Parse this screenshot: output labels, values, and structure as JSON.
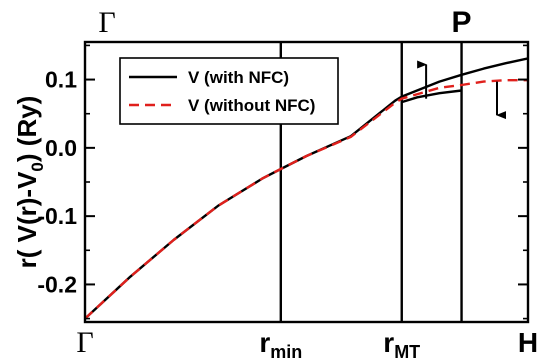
{
  "chart_data": {
    "type": "line",
    "title": "",
    "ylabel_parts": [
      "r( V(r)-V",
      "0",
      ") (Ry)"
    ],
    "xlabel": "",
    "xlim": [
      0,
      1
    ],
    "ylim": [
      -0.255,
      0.155
    ],
    "grid": false,
    "legend_position": "top-left",
    "y_ticks": [
      -0.2,
      -0.1,
      0.0,
      0.1
    ],
    "y_tick_labels": [
      "-0.2",
      "-0.1",
      "0.0",
      "0.1"
    ],
    "x_tick_marks": [
      {
        "x": 0.0,
        "main": "Γ",
        "sub": "",
        "font": "serif"
      },
      {
        "x": 0.442,
        "main": "r",
        "sub": "min",
        "font": "sans"
      },
      {
        "x": 0.715,
        "main": "r",
        "sub": "MT",
        "font": "sans"
      },
      {
        "x": 1.0,
        "main": "H",
        "sub": "",
        "font": "sans"
      }
    ],
    "top_labels": [
      {
        "x": 0.0,
        "text": "Γ",
        "font": "serif"
      },
      {
        "x": 0.85,
        "text": "P",
        "font": "sans"
      }
    ],
    "vertical_lines": [
      0.442,
      0.715,
      0.85
    ],
    "series": [
      {
        "name": "V (with NFC)",
        "color": "#000000",
        "dash": "solid",
        "x": [
          0,
          0.1,
          0.2,
          0.3,
          0.4,
          0.442,
          0.5,
          0.6,
          0.7,
          0.715,
          0.8,
          0.85,
          0.9,
          0.95,
          1.0
        ],
        "y": [
          -0.25,
          -0.19,
          -0.135,
          -0.085,
          -0.045,
          -0.031,
          -0.012,
          0.017,
          0.069,
          0.075,
          0.097,
          0.107,
          0.116,
          0.124,
          0.131
        ]
      },
      {
        "name": "V (without NFC)",
        "color": "#e0201c",
        "dash": "dashed",
        "x": [
          0,
          0.1,
          0.2,
          0.3,
          0.4,
          0.442,
          0.5,
          0.6,
          0.7,
          0.715,
          0.8,
          0.85,
          0.9,
          0.95,
          1.0
        ],
        "y": [
          -0.25,
          -0.19,
          -0.135,
          -0.085,
          -0.045,
          -0.031,
          -0.012,
          0.016,
          0.066,
          0.072,
          0.088,
          0.092,
          0.097,
          0.099,
          0.099
        ]
      },
      {
        "name": "",
        "color": "#000000",
        "dash": "solid",
        "x": [
          0.715,
          0.75,
          0.8,
          0.85
        ],
        "y": [
          0.067,
          0.074,
          0.08,
          0.084
        ]
      }
    ],
    "arrows": [
      {
        "x": 0.77,
        "y_from": 0.072,
        "y_to": 0.122
      },
      {
        "x": 0.93,
        "y_from": 0.097,
        "y_to": 0.048
      }
    ]
  }
}
